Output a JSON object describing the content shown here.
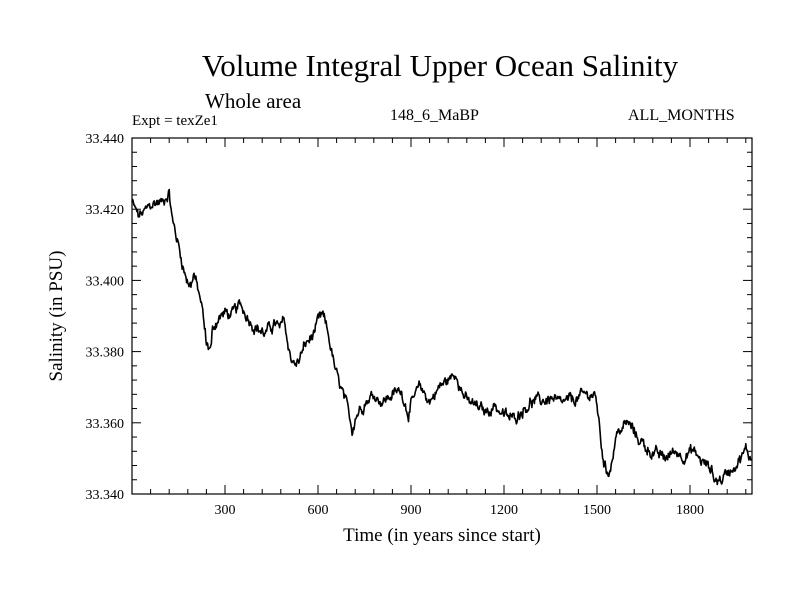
{
  "header": {
    "title": "Volume Integral Upper Ocean Salinity",
    "subtitle": "Whole area",
    "expt_label": "Expt = texZe1",
    "run_label": "148_6_MaBP",
    "months_label": "ALL_MONTHS"
  },
  "chart_data": {
    "type": "line",
    "title": "Volume Integral Upper Ocean Salinity",
    "subtitle": "Whole area",
    "xlabel": "Time (in years since start)",
    "ylabel": "Salinity (in PSU)",
    "xlim": [
      0,
      2000
    ],
    "ylim": [
      33.34,
      33.44
    ],
    "x_ticks": [
      300,
      600,
      900,
      1200,
      1500,
      1800
    ],
    "y_ticks": [
      "33.340",
      "33.360",
      "33.380",
      "33.400",
      "33.420",
      "33.440"
    ],
    "grid": false,
    "series": [
      {
        "name": "texZe1",
        "color": "#000000",
        "x": [
          0,
          10,
          20,
          40,
          60,
          80,
          100,
          110,
          120,
          130,
          150,
          170,
          180,
          190,
          200,
          210,
          225,
          240,
          255,
          260,
          275,
          300,
          320,
          350,
          380,
          400,
          430,
          460,
          480,
          490,
          500,
          515,
          530,
          560,
          580,
          600,
          615,
          630,
          660,
          680,
          700,
          710,
          720,
          750,
          780,
          810,
          840,
          870,
          890,
          900,
          930,
          960,
          990,
          1020,
          1050,
          1060,
          1080,
          1100,
          1140,
          1170,
          1200,
          1230,
          1260,
          1290,
          1320,
          1350,
          1380,
          1410,
          1440,
          1470,
          1490,
          1500,
          1510,
          1520,
          1530,
          1545,
          1560,
          1575,
          1600,
          1630,
          1660,
          1690,
          1720,
          1750,
          1780,
          1810,
          1840,
          1870,
          1880,
          1900,
          1920,
          1950,
          1980,
          2000
        ],
        "values": [
          33.422,
          33.42,
          33.418,
          33.419,
          33.421,
          33.422,
          33.422,
          33.424,
          33.425,
          33.417,
          33.41,
          33.402,
          33.4,
          33.399,
          33.402,
          33.398,
          33.393,
          33.382,
          33.381,
          33.386,
          33.389,
          33.391,
          33.39,
          33.393,
          33.389,
          33.387,
          33.385,
          33.388,
          33.386,
          33.39,
          33.383,
          33.378,
          33.376,
          33.382,
          33.384,
          33.388,
          33.39,
          33.386,
          33.373,
          33.368,
          33.362,
          33.358,
          33.362,
          33.366,
          33.368,
          33.366,
          33.368,
          33.369,
          33.363,
          33.365,
          33.37,
          33.366,
          33.37,
          33.372,
          33.374,
          33.37,
          33.366,
          33.365,
          33.363,
          33.365,
          33.362,
          33.361,
          33.364,
          33.366,
          33.366,
          33.367,
          33.365,
          33.366,
          33.367,
          33.368,
          33.368,
          33.365,
          33.357,
          33.35,
          33.346,
          33.348,
          33.356,
          33.358,
          33.36,
          33.356,
          33.353,
          33.351,
          33.35,
          33.352,
          33.351,
          33.352,
          33.349,
          33.347,
          33.344,
          33.344,
          33.346,
          33.349,
          33.352,
          33.35
        ]
      }
    ]
  }
}
